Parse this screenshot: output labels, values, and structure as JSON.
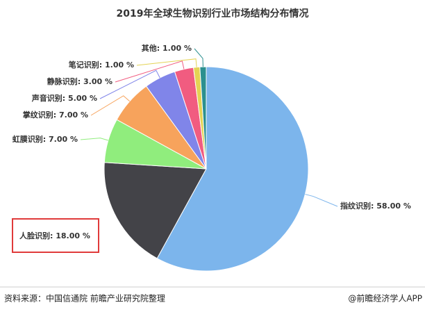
{
  "chart_data": {
    "type": "pie",
    "title": "2019年全球生物识别行业市场结构分布情况",
    "categories": [
      "指纹识别",
      "人脸识别",
      "虹膜识别",
      "掌纹识别",
      "声音识别",
      "静脉识别",
      "笔记识别",
      "其他"
    ],
    "values": [
      58,
      18,
      7,
      7,
      5,
      3,
      1,
      1
    ],
    "value_labels": [
      "58.00 %",
      "18.00 %",
      "7.00 %",
      "7.00 %",
      "5.00 %",
      "3.00 %",
      "1.00 %",
      "1.00 %"
    ],
    "label_separator": ": ",
    "colors": [
      "#7cb5ec",
      "#434348",
      "#90ed7d",
      "#f7a35c",
      "#8085e9",
      "#f15c80",
      "#e4d354",
      "#2b908f"
    ],
    "source": "资料来源：中国信通院 前瞻产业研究院整理",
    "credit": "@前瞻经济学人APP"
  }
}
